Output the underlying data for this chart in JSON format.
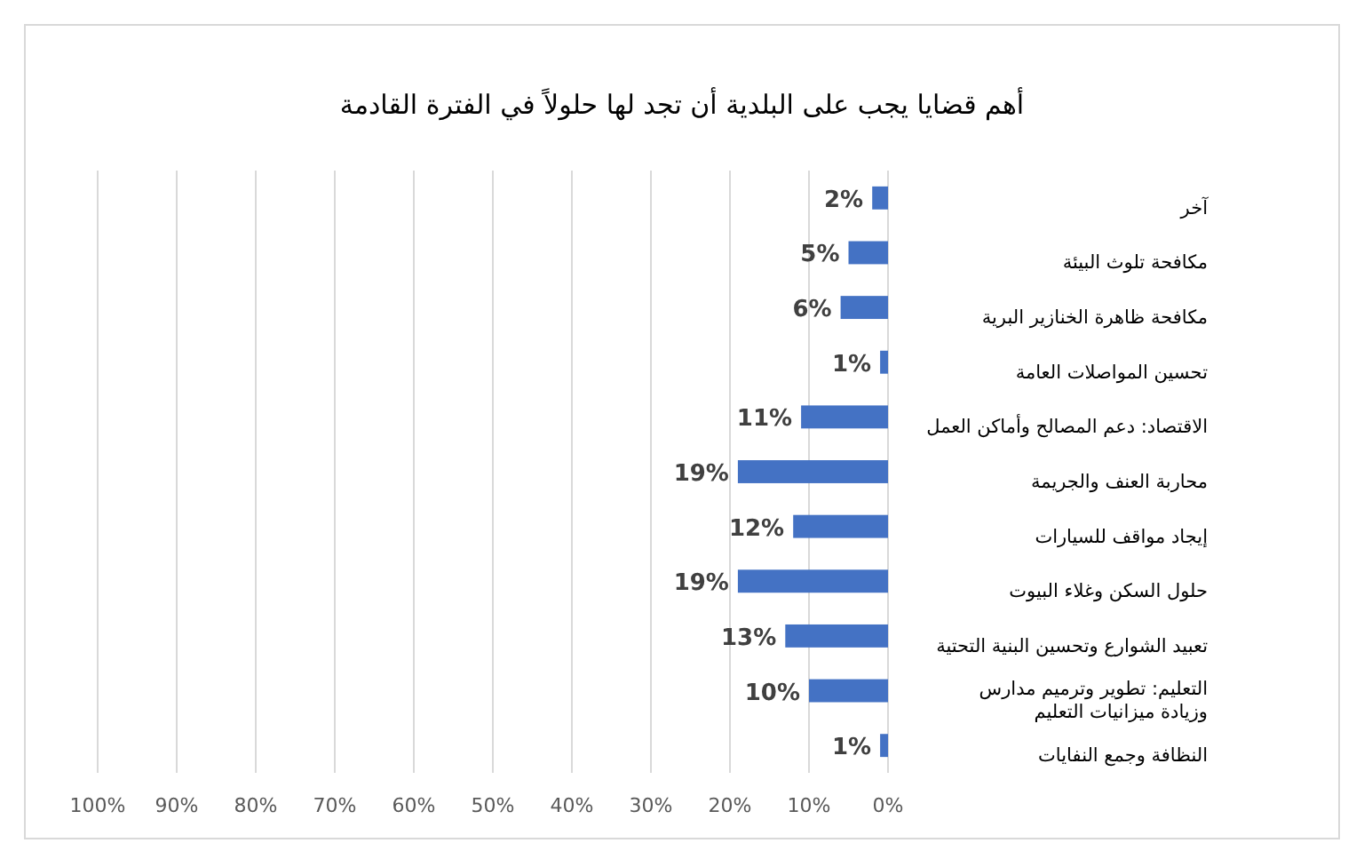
{
  "chart_data": {
    "type": "bar",
    "orientation": "horizontal",
    "title": "أهم قضايا يجب على البلدية أن تجد لها حلولاً في الفترة القادمة",
    "categories": [
      "آخر",
      "مكافحة تلوث البيئة",
      "مكافحة ظاهرة الخنازير البرية",
      "تحسين المواصلات العامة",
      "الاقتصاد: دعم المصالح وأماكن العمل",
      "محاربة العنف والجريمة",
      "إيجاد مواقف للسيارات",
      "حلول السكن وغلاء البيوت",
      "تعبيد الشوارع وتحسين البنية التحتية",
      "التعليم: تطوير وترميم مدارس وزيادة ميزانيات التعليم",
      "النظافة وجمع النفايات"
    ],
    "values": [
      2,
      5,
      6,
      1,
      11,
      19,
      12,
      19,
      13,
      10,
      1
    ],
    "value_labels": [
      "2%",
      "5%",
      "6%",
      "1%",
      "11%",
      "19%",
      "12%",
      "19%",
      "13%",
      "10%",
      "1%"
    ],
    "color": "#4472c4",
    "xlim": [
      100,
      0
    ],
    "xticks": [
      {
        "value": 100,
        "label": "100%"
      },
      {
        "value": 90,
        "label": "90%"
      },
      {
        "value": 80,
        "label": "80%"
      },
      {
        "value": 70,
        "label": "70%"
      },
      {
        "value": 60,
        "label": "60%"
      },
      {
        "value": 50,
        "label": "50%"
      },
      {
        "value": 40,
        "label": "40%"
      },
      {
        "value": 30,
        "label": "30%"
      },
      {
        "value": 20,
        "label": "20%"
      },
      {
        "value": 10,
        "label": "10%"
      },
      {
        "value": 0,
        "label": "0%"
      }
    ],
    "grid": "x"
  }
}
